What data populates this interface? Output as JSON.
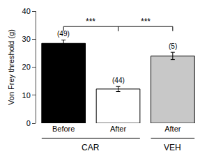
{
  "chart_data": {
    "type": "bar",
    "categories": [
      "Before",
      "After",
      "After"
    ],
    "groups": [
      "CAR",
      "CAR",
      "VEH"
    ],
    "values": [
      28.5,
      12.2,
      24.0
    ],
    "errors": [
      1.2,
      0.9,
      1.3
    ],
    "colors": [
      "#000000",
      "#ffffff",
      "#c8c8c8"
    ],
    "n_labels": [
      "(49)",
      "(44)",
      "(5)"
    ],
    "ylabel": "Von Frey threshold (g)",
    "ylim": [
      0,
      40
    ],
    "yticks": [
      0,
      10,
      20,
      30,
      40
    ],
    "grid": false,
    "brackets": [
      {
        "from": 0,
        "to": 1,
        "label": "***"
      },
      {
        "from": 1,
        "to": 2,
        "label": "***"
      }
    ]
  }
}
